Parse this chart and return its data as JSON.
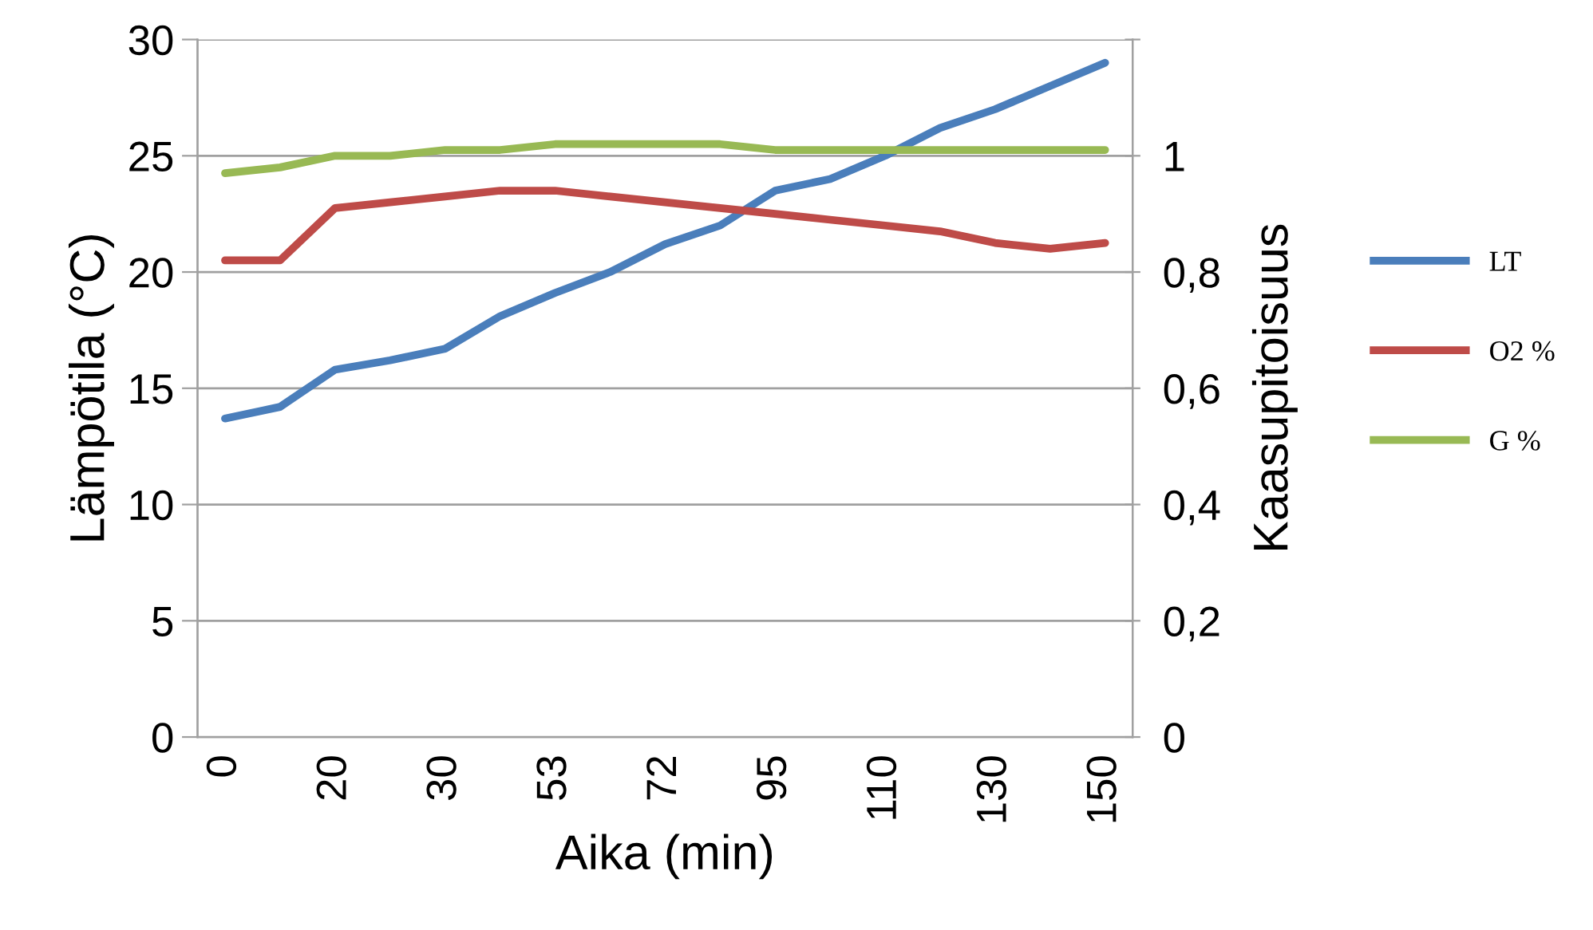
{
  "chart_data": {
    "type": "line",
    "xlabel": "Aika (min)",
    "ylabel": "Lämpötila (°C)",
    "y2label": "Kaasupitoisuus",
    "categories": [
      "0",
      null,
      "20",
      null,
      "30",
      null,
      "53",
      null,
      "72",
      null,
      "95",
      null,
      "110",
      null,
      "130",
      null,
      "150"
    ],
    "series": [
      {
        "name": "LT",
        "color": "#4a7ebb",
        "values": [
          13.7,
          14.2,
          15.8,
          16.2,
          16.7,
          18.1,
          19.1,
          20.0,
          21.2,
          22.0,
          23.5,
          24.0,
          25.0,
          26.2,
          27.0,
          28.0,
          29.0
        ]
      },
      {
        "name": "O2 %",
        "color": "#be4b48",
        "axis": "y2",
        "values": [
          0.82,
          0.82,
          0.91,
          0.92,
          0.93,
          0.94,
          0.94,
          0.93,
          0.92,
          0.91,
          0.9,
          0.89,
          0.88,
          0.87,
          0.85,
          0.84,
          0.85
        ]
      },
      {
        "name": "G %",
        "color": "#98b954",
        "axis": "y2",
        "values": [
          0.97,
          0.98,
          1.0,
          1.0,
          1.01,
          1.01,
          1.02,
          1.02,
          1.02,
          1.02,
          1.01,
          1.01,
          1.01,
          1.01,
          1.01,
          1.01,
          1.01
        ]
      }
    ],
    "ylim": [
      0,
      30
    ],
    "yticks": [
      0,
      5,
      10,
      15,
      20,
      25,
      30
    ],
    "y2lim": [
      0,
      1.2
    ],
    "y2ticks": [
      0,
      {
        "value": 0.2,
        "label": "0,2"
      },
      {
        "value": 0.4,
        "label": "0,4"
      },
      {
        "value": 0.6,
        "label": "0,6"
      },
      {
        "value": 0.8,
        "label": "0,8"
      },
      1,
      {
        "value": 1.2,
        "label": null
      }
    ],
    "grid": "y",
    "legend": "right",
    "marker": "none",
    "line_style": "solid"
  }
}
